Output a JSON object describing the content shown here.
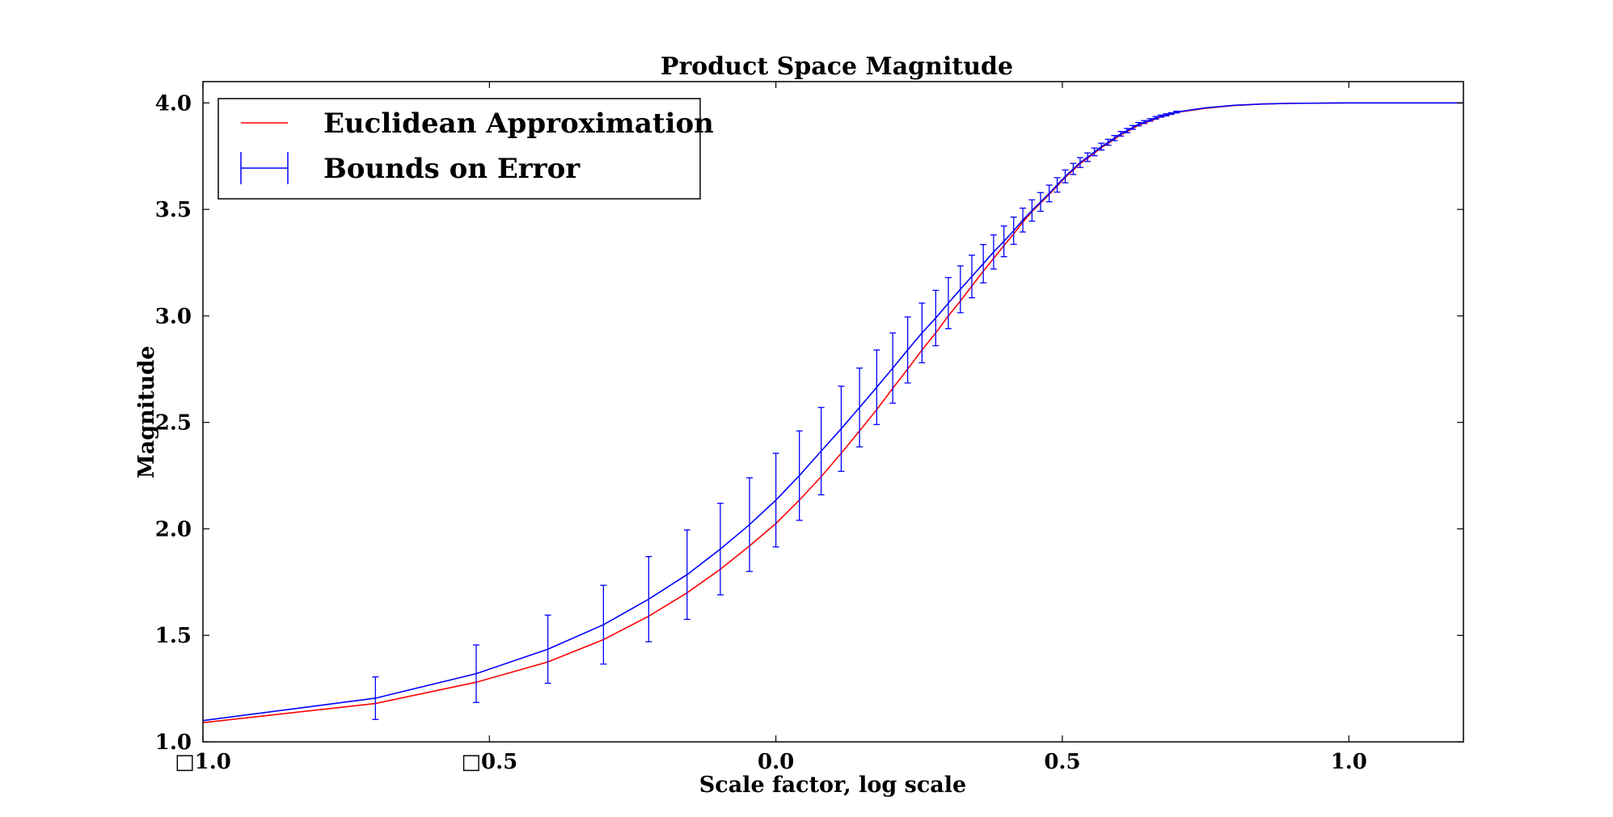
{
  "chart_data": {
    "type": "line",
    "title": "Product Space Magnitude",
    "xlabel": "Scale factor, log scale",
    "ylabel": "Magnitude",
    "xlim": [
      -1.0,
      1.2
    ],
    "ylim": [
      1.0,
      4.1
    ],
    "xticks": [
      {
        "value": -1.0,
        "label": "□1.0"
      },
      {
        "value": -0.5,
        "label": "□0.5"
      },
      {
        "value": 0.0,
        "label": "0.0"
      },
      {
        "value": 0.5,
        "label": "0.5"
      },
      {
        "value": 1.0,
        "label": "1.0"
      }
    ],
    "yticks": [
      {
        "value": 1.0,
        "label": "1.0"
      },
      {
        "value": 1.5,
        "label": "1.5"
      },
      {
        "value": 2.0,
        "label": "2.0"
      },
      {
        "value": 2.5,
        "label": "2.5"
      },
      {
        "value": 3.0,
        "label": "3.0"
      },
      {
        "value": 3.5,
        "label": "3.5"
      },
      {
        "value": 4.0,
        "label": "4.0"
      }
    ],
    "grid": false,
    "legend_position": "top-left",
    "series": [
      {
        "name": "Euclidean Approximation",
        "color": "#ff0000",
        "x": [
          -1.0,
          -0.699,
          -0.523,
          -0.398,
          -0.301,
          -0.222,
          -0.155,
          -0.097,
          -0.046,
          0.0,
          0.041,
          0.079,
          0.114,
          0.146,
          0.176,
          0.204,
          0.23,
          0.255,
          0.279,
          0.301,
          0.322,
          0.342,
          0.362,
          0.38,
          0.398,
          0.415,
          0.431,
          0.447,
          0.462,
          0.477,
          0.491,
          0.505,
          0.519,
          0.531,
          0.544,
          0.556,
          0.568,
          0.58,
          0.591,
          0.602,
          0.613,
          0.623,
          0.633,
          0.643,
          0.653,
          0.663,
          0.672,
          0.681,
          0.69,
          0.699,
          0.75,
          0.8,
          0.85,
          0.9,
          0.95,
          1.0,
          1.1,
          1.2
        ],
        "y": [
          1.09,
          1.18,
          1.28,
          1.375,
          1.48,
          1.59,
          1.7,
          1.81,
          1.92,
          2.025,
          2.135,
          2.245,
          2.355,
          2.46,
          2.56,
          2.66,
          2.75,
          2.84,
          2.92,
          3.0,
          3.07,
          3.14,
          3.21,
          3.27,
          3.33,
          3.385,
          3.44,
          3.49,
          3.53,
          3.57,
          3.61,
          3.65,
          3.685,
          3.715,
          3.74,
          3.765,
          3.79,
          3.81,
          3.83,
          3.85,
          3.865,
          3.88,
          3.895,
          3.905,
          3.915,
          3.925,
          3.935,
          3.94,
          3.948,
          3.955,
          3.975,
          3.988,
          3.995,
          3.998,
          3.999,
          4.0,
          4.0,
          4.0
        ]
      },
      {
        "name": "Bounds on Error",
        "color": "#0000ff",
        "x": [
          -1.0,
          -0.699,
          -0.523,
          -0.398,
          -0.301,
          -0.222,
          -0.155,
          -0.097,
          -0.046,
          0.0,
          0.041,
          0.079,
          0.114,
          0.146,
          0.176,
          0.204,
          0.23,
          0.255,
          0.279,
          0.301,
          0.322,
          0.342,
          0.362,
          0.38,
          0.398,
          0.415,
          0.431,
          0.447,
          0.462,
          0.477,
          0.491,
          0.505,
          0.519,
          0.531,
          0.544,
          0.556,
          0.568,
          0.58,
          0.591,
          0.602,
          0.613,
          0.623,
          0.633,
          0.643,
          0.653,
          0.663,
          0.672,
          0.681,
          0.69,
          0.699,
          0.75,
          0.8,
          0.85,
          0.9,
          0.95,
          1.0,
          1.1,
          1.2
        ],
        "y": [
          1.1,
          1.205,
          1.32,
          1.435,
          1.55,
          1.67,
          1.785,
          1.905,
          2.02,
          2.135,
          2.25,
          2.365,
          2.47,
          2.57,
          2.665,
          2.755,
          2.84,
          2.92,
          2.99,
          3.06,
          3.125,
          3.185,
          3.245,
          3.3,
          3.35,
          3.4,
          3.45,
          3.495,
          3.535,
          3.575,
          3.615,
          3.655,
          3.69,
          3.72,
          3.745,
          3.77,
          3.795,
          3.815,
          3.835,
          3.855,
          3.87,
          3.885,
          3.9,
          3.91,
          3.92,
          3.93,
          3.938,
          3.944,
          3.95,
          3.957,
          3.977,
          3.989,
          3.995,
          3.998,
          3.999,
          4.0,
          4.0,
          4.0
        ],
        "error": [
          0.0,
          0.1,
          0.135,
          0.16,
          0.185,
          0.2,
          0.21,
          0.215,
          0.22,
          0.22,
          0.21,
          0.205,
          0.2,
          0.185,
          0.175,
          0.165,
          0.155,
          0.14,
          0.13,
          0.12,
          0.11,
          0.1,
          0.09,
          0.08,
          0.072,
          0.064,
          0.056,
          0.05,
          0.044,
          0.039,
          0.034,
          0.03,
          0.026,
          0.023,
          0.02,
          0.018,
          0.016,
          0.014,
          0.012,
          0.011,
          0.01,
          0.009,
          0.008,
          0.007,
          0.006,
          0.006,
          0.005,
          0.005,
          0.004,
          0.004,
          0.0,
          0.0,
          0.0,
          0.0,
          0.0,
          0.0,
          0.0,
          0.0
        ]
      }
    ]
  }
}
